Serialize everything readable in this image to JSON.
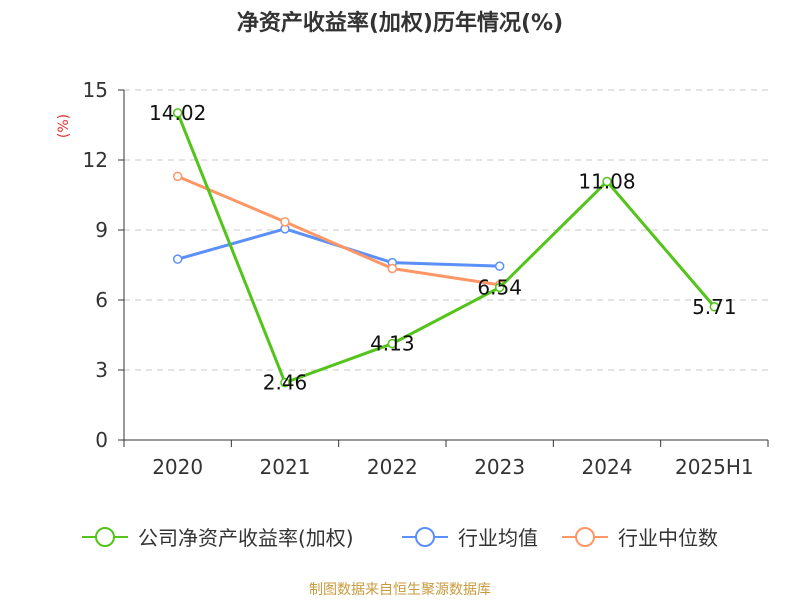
{
  "chart_data": {
    "type": "line",
    "title": "净资产收益率(加权)历年情况(%)",
    "ylabel": "(%)",
    "xlabel": "",
    "categories": [
      "2020",
      "2021",
      "2022",
      "2023",
      "2024",
      "2025H1"
    ],
    "y_ticks": [
      0,
      3,
      6,
      9,
      12,
      15
    ],
    "ylim": [
      0,
      15
    ],
    "grid": "horizontal dashed",
    "legend_position": "bottom",
    "series": [
      {
        "name": "公司净资产收益率(加权)",
        "color": "#52c41a",
        "values": [
          14.02,
          2.46,
          4.13,
          6.54,
          11.08,
          5.71
        ],
        "data_labels": [
          "14.02",
          "2.46",
          "4.13",
          "6.54",
          "11.08",
          "5.71"
        ]
      },
      {
        "name": "行业均值",
        "color": "#5b8ff9",
        "values": [
          7.75,
          9.05,
          7.6,
          7.45,
          null,
          null
        ],
        "data_labels": []
      },
      {
        "name": "行业中位数",
        "color": "#ff9666",
        "values": [
          11.3,
          9.35,
          7.35,
          6.65,
          null,
          null
        ],
        "data_labels": []
      }
    ],
    "source": "制图数据来自恒生聚源数据库"
  },
  "colors": {
    "title": "#333333",
    "axis": "#333333",
    "grid": "#c8c8c8",
    "ylabel": "#e03030",
    "source": "#c89a3c"
  }
}
